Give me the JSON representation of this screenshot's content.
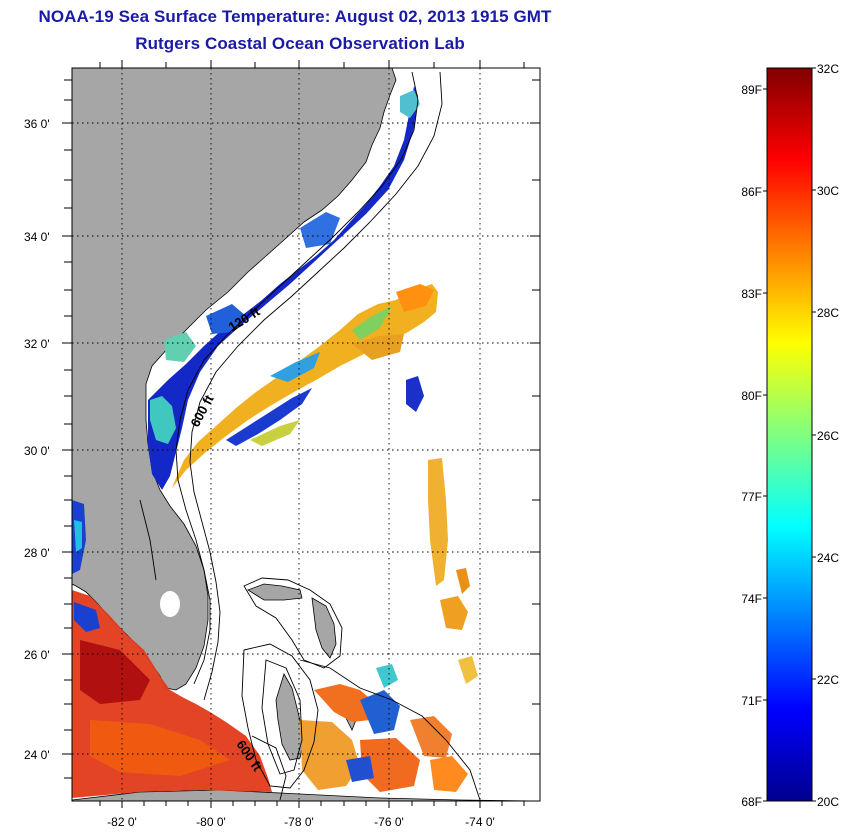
{
  "header": {
    "title": "NOAA-19 Sea Surface Temperature:  August 02, 2013 1915 GMT",
    "subtitle": "Rutgers Coastal Ocean Observation Lab"
  },
  "map": {
    "lat_labels": [
      "36 0'",
      "34 0'",
      "32 0'",
      "30 0'",
      "28 0'",
      "26 0'",
      "24 0'"
    ],
    "lon_labels": [
      "-82 0'",
      "-80 0'",
      "-78 0'",
      "-76 0'",
      "-74 0'"
    ],
    "contour_labels": [
      "120 ft",
      "600 ft",
      "600 ft"
    ],
    "land_color": "#a6a6a6",
    "ocean_no_data_color": "#ffffff"
  },
  "colorbar": {
    "fahrenheit_labels": [
      "89F",
      "86F",
      "83F",
      "80F",
      "77F",
      "74F",
      "71F",
      "68F"
    ],
    "celsius_labels": [
      "32C",
      "30C",
      "28C",
      "26C",
      "24C",
      "22C",
      "20C"
    ],
    "colors": [
      "#00008f",
      "#0000ff",
      "#0080ff",
      "#00ffff",
      "#80ff80",
      "#ffff00",
      "#ff8000",
      "#ff0000",
      "#800000"
    ]
  }
}
